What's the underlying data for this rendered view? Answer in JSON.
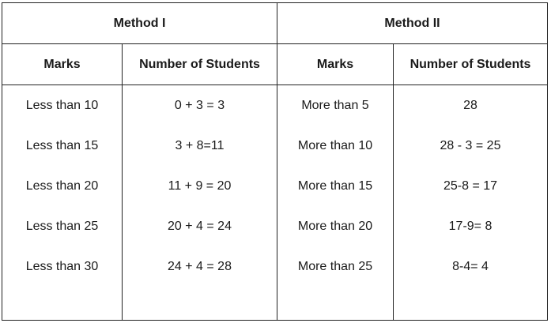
{
  "methods": [
    {
      "title": "Method I",
      "col_marks": "Marks",
      "col_students": "Number of Students",
      "rows": [
        {
          "marks": "Less than 10",
          "students": "0 + 3 = 3"
        },
        {
          "marks": "Less than 15",
          "students": "3 + 8=11"
        },
        {
          "marks": "Less than 20",
          "students": "11 + 9 = 20"
        },
        {
          "marks": "Less than 25",
          "students": "20 + 4 = 24"
        },
        {
          "marks": "Less than 30",
          "students": "24 + 4 = 28"
        }
      ]
    },
    {
      "title": "Method II",
      "col_marks": "Marks",
      "col_students": "Number of Students",
      "rows": [
        {
          "marks": "More than 5",
          "students": "28"
        },
        {
          "marks": "More than 10",
          "students": "28 - 3 = 25"
        },
        {
          "marks": "More than 15",
          "students": "25-8 = 17"
        },
        {
          "marks": "More than 20",
          "students": "17-9= 8"
        },
        {
          "marks": "More than 25",
          "students": "8-4= 4"
        }
      ]
    }
  ]
}
